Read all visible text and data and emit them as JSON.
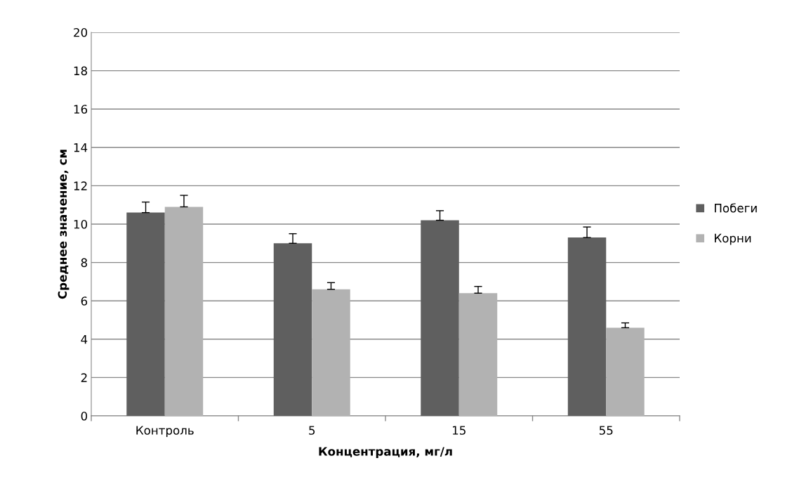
{
  "chart_data": {
    "type": "bar",
    "xlabel": "Концентрация, мг/л",
    "ylabel": "Среднее значение, см",
    "categories": [
      "Контроль",
      "5",
      "15",
      "55"
    ],
    "series": [
      {
        "name": "Побеги",
        "color": "#5f5f5f",
        "values": [
          10.6,
          9.0,
          10.2,
          9.3
        ],
        "errors": [
          [
            10.6,
            11.15
          ],
          [
            9.0,
            9.5
          ],
          [
            10.2,
            10.7
          ],
          [
            9.3,
            9.85
          ]
        ]
      },
      {
        "name": "Корни",
        "color": "#b2b2b2",
        "values": [
          10.9,
          6.6,
          6.4,
          4.6
        ],
        "errors": [
          [
            10.9,
            11.5
          ],
          [
            6.6,
            6.95
          ],
          [
            6.4,
            6.75
          ],
          [
            4.6,
            4.85
          ]
        ]
      }
    ],
    "ylim": [
      0,
      20
    ],
    "yticks": [
      0,
      2,
      4,
      6,
      8,
      10,
      12,
      14,
      16,
      18,
      20
    ],
    "grid": "y",
    "legend": "right"
  }
}
